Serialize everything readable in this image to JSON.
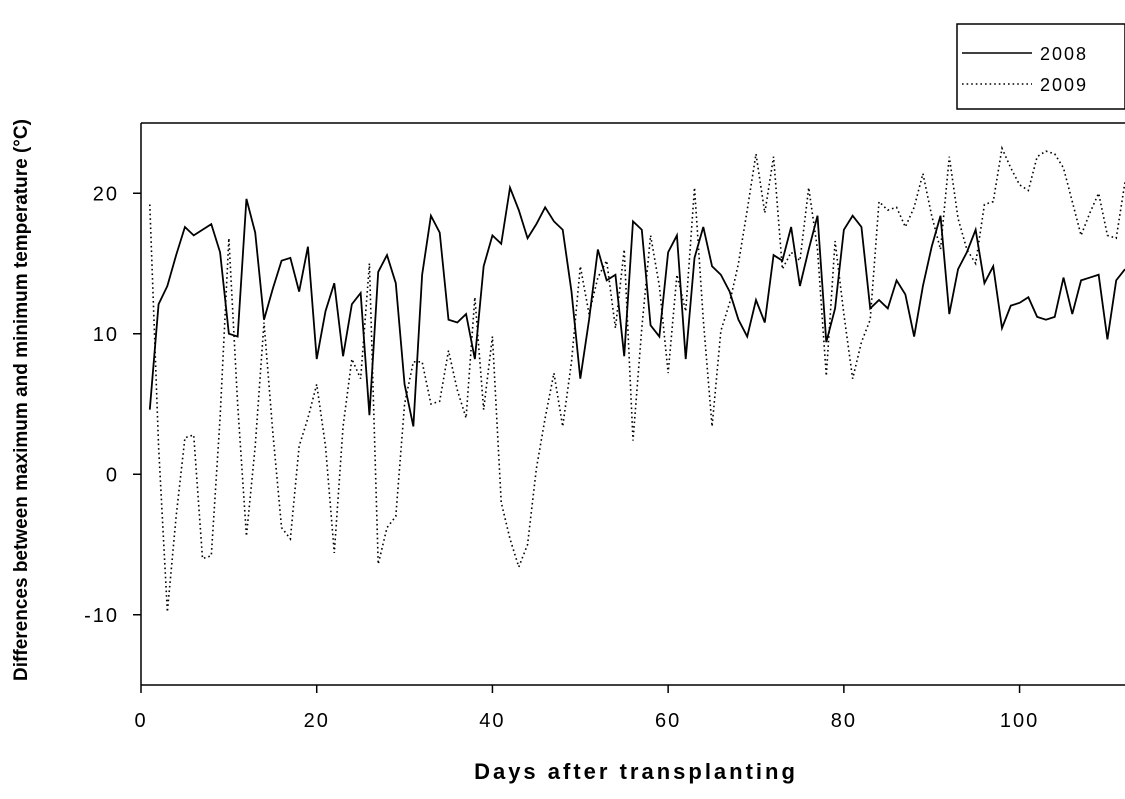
{
  "chart_data": {
    "type": "line",
    "title": "",
    "xlabel": "Days after transplanting",
    "ylabel": "Differences between maximum and minimum temperature (°C)",
    "xlim": [
      0,
      112
    ],
    "ylim": [
      -15,
      25
    ],
    "xticks": [
      0,
      20,
      40,
      60,
      80,
      100
    ],
    "yticks": [
      -10,
      0,
      10,
      20
    ],
    "grid": false,
    "legend_position": "top-right",
    "series": [
      {
        "name": "2008",
        "style": "solid",
        "x": [
          1,
          2,
          3,
          4,
          5,
          6,
          7,
          8,
          9,
          10,
          11,
          12,
          13,
          14,
          15,
          16,
          17,
          18,
          19,
          20,
          21,
          22,
          23,
          24,
          25,
          26,
          27,
          28,
          29,
          30,
          31,
          32,
          33,
          34,
          35,
          36,
          37,
          38,
          39,
          40,
          41,
          42,
          43,
          44,
          45,
          46,
          47,
          48,
          49,
          50,
          51,
          52,
          53,
          54,
          55,
          56,
          57,
          58,
          59,
          60,
          61,
          62,
          63,
          64,
          65,
          66,
          67,
          68,
          69,
          70,
          71,
          72,
          73,
          74,
          75,
          76,
          77,
          78,
          79,
          80,
          81,
          82,
          83,
          84,
          85,
          86,
          87,
          88,
          89,
          90,
          91,
          92,
          93,
          94,
          95,
          96,
          97,
          98,
          99,
          100,
          101,
          102,
          103,
          104,
          105,
          106,
          107,
          108,
          109,
          110,
          111,
          112
        ],
        "values": [
          4.6,
          12.1,
          13.4,
          15.6,
          17.6,
          17.0,
          17.4,
          17.8,
          15.8,
          10.0,
          9.8,
          19.6,
          17.2,
          11.0,
          13.2,
          15.2,
          15.4,
          13.0,
          16.2,
          8.2,
          11.6,
          13.6,
          8.4,
          12.1,
          12.9,
          4.2,
          14.4,
          15.6,
          13.6,
          6.4,
          3.4,
          14.2,
          18.4,
          17.2,
          11.0,
          10.8,
          11.4,
          8.2,
          14.8,
          17.0,
          16.4,
          20.4,
          18.8,
          16.8,
          17.8,
          19.0,
          18.0,
          17.4,
          13.0,
          6.8,
          11.0,
          16.0,
          13.8,
          14.2,
          8.4,
          18.0,
          17.4,
          10.6,
          9.8,
          15.8,
          17.0,
          8.2,
          15.4,
          17.6,
          14.8,
          14.2,
          13.0,
          11.0,
          9.8,
          12.4,
          10.8,
          15.6,
          15.2,
          17.6,
          13.4,
          16.0,
          18.4,
          9.4,
          11.8,
          17.4,
          18.4,
          17.6,
          11.8,
          12.4,
          11.8,
          13.8,
          12.8,
          9.8,
          13.4,
          16.2,
          18.4,
          11.4,
          14.6,
          15.8,
          17.4,
          13.6,
          14.8,
          10.4,
          12.0,
          12.2,
          12.6,
          11.2,
          11.0,
          11.2,
          14.0,
          11.4,
          13.8,
          14.0,
          14.2,
          9.6,
          13.8,
          14.6
        ]
      },
      {
        "name": "2009",
        "style": "dotted",
        "x": [
          1,
          2,
          3,
          4,
          5,
          6,
          7,
          8,
          9,
          10,
          11,
          12,
          13,
          14,
          15,
          16,
          17,
          18,
          19,
          20,
          21,
          22,
          23,
          24,
          25,
          26,
          27,
          28,
          29,
          30,
          31,
          32,
          33,
          34,
          35,
          36,
          37,
          38,
          39,
          40,
          41,
          42,
          43,
          44,
          45,
          46,
          47,
          48,
          49,
          50,
          51,
          52,
          53,
          54,
          55,
          56,
          57,
          58,
          59,
          60,
          61,
          62,
          63,
          64,
          65,
          66,
          67,
          68,
          69,
          70,
          71,
          72,
          73,
          74,
          75,
          76,
          77,
          78,
          79,
          80,
          81,
          82,
          83,
          84,
          85,
          86,
          87,
          88,
          89,
          90,
          91,
          92,
          93,
          94,
          95,
          96,
          97,
          98,
          99,
          100,
          101,
          102,
          103,
          104,
          105,
          106,
          107,
          108,
          109,
          110,
          111,
          112
        ],
        "values": [
          19.2,
          2.0,
          -9.8,
          -3.0,
          2.6,
          2.8,
          -6.0,
          -5.8,
          4.0,
          16.8,
          5.0,
          -4.4,
          2.0,
          10.8,
          3.0,
          -3.8,
          -4.6,
          2.0,
          4.0,
          6.4,
          2.0,
          -5.6,
          3.4,
          8.2,
          6.8,
          15.0,
          -6.4,
          -3.8,
          -3.0,
          5.0,
          8.0,
          8.0,
          5.0,
          5.2,
          8.8,
          6.0,
          4.0,
          12.6,
          4.6,
          9.8,
          -2.0,
          -4.6,
          -6.6,
          -5.0,
          0.4,
          4.0,
          7.2,
          3.4,
          8.0,
          14.8,
          11.4,
          14.0,
          15.2,
          10.4,
          16.0,
          2.4,
          10.4,
          17.0,
          13.4,
          7.2,
          14.2,
          11.6,
          20.4,
          11.0,
          3.4,
          10.2,
          12.2,
          15.0,
          18.8,
          22.8,
          18.6,
          22.6,
          14.6,
          15.8,
          15.2,
          20.4,
          16.0,
          7.0,
          16.6,
          11.4,
          6.8,
          9.4,
          11.0,
          19.4,
          18.8,
          19.0,
          17.6,
          19.0,
          21.4,
          18.4,
          16.0,
          22.6,
          18.2,
          16.0,
          15.0,
          19.2,
          19.4,
          23.2,
          21.8,
          20.6,
          20.2,
          22.6,
          23.0,
          22.8,
          21.8,
          19.4,
          17.0,
          18.6,
          20.0,
          17.0,
          16.8,
          20.8
        ]
      }
    ]
  }
}
